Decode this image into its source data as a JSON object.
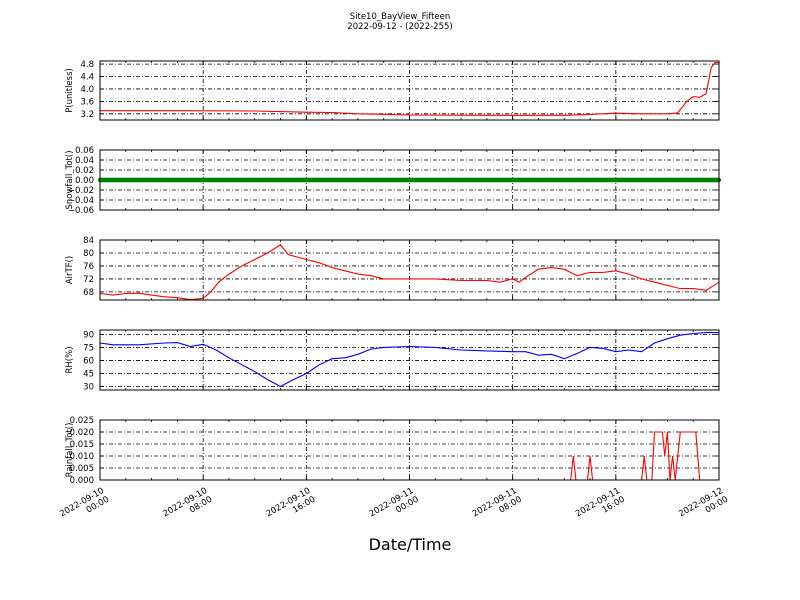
{
  "figure": {
    "title_line1": "Site10_BayView_Fifteen",
    "title_line2": "2022-09-12 - (2022-255)",
    "xlabel": "Date/Time"
  },
  "chart_data": {
    "type": "line",
    "x_axis": {
      "ticks": [
        {
          "line1": "2022-09-10",
          "line2": "00:00",
          "hours": 0
        },
        {
          "line1": "2022-09-10",
          "line2": "08:00",
          "hours": 8
        },
        {
          "line1": "2022-09-10",
          "line2": "16:00",
          "hours": 16
        },
        {
          "line1": "2022-09-11",
          "line2": "00:00",
          "hours": 24
        },
        {
          "line1": "2022-09-11",
          "line2": "08:00",
          "hours": 32
        },
        {
          "line1": "2022-09-11",
          "line2": "16:00",
          "hours": 40
        },
        {
          "line1": "2022-09-12",
          "line2": "00:00",
          "hours": 48
        }
      ],
      "range_hours": [
        0,
        48
      ]
    },
    "panels": [
      {
        "ylabel": "P(unitless)",
        "color": "#ff0000",
        "ylim": [
          3.0,
          4.9
        ],
        "yticks": [
          3.2,
          3.6,
          4.0,
          4.4,
          4.8
        ],
        "tick_labels": [
          "3.2",
          "3.6",
          "4.0",
          "4.4",
          "4.8"
        ],
        "grid": true,
        "series": {
          "name": "",
          "points": [
            [
              0,
              3.3
            ],
            [
              6,
              3.3
            ],
            [
              12,
              3.29
            ],
            [
              16,
              3.25
            ],
            [
              18,
              3.24
            ],
            [
              20,
              3.2
            ],
            [
              24,
              3.16
            ],
            [
              30,
              3.15
            ],
            [
              36,
              3.15
            ],
            [
              38,
              3.18
            ],
            [
              40,
              3.22
            ],
            [
              42,
              3.2
            ],
            [
              44,
              3.2
            ],
            [
              44.8,
              3.23
            ],
            [
              45.5,
              3.6
            ],
            [
              46,
              3.75
            ],
            [
              46.5,
              3.73
            ],
            [
              47,
              3.85
            ],
            [
              47.4,
              4.7
            ],
            [
              47.7,
              4.85
            ],
            [
              48,
              4.85
            ]
          ]
        }
      },
      {
        "ylabel": "Snowfall_Tot()",
        "color": "#008000",
        "ylim": [
          -0.06,
          0.06
        ],
        "yticks": [
          -0.06,
          -0.04,
          -0.02,
          0.0,
          0.02,
          0.04,
          0.06
        ],
        "tick_labels": [
          "−0.06",
          "−0.04",
          "−0.02",
          "0.00",
          "0.02",
          "0.04",
          "0.06"
        ],
        "grid": true,
        "series": {
          "name": "",
          "points": [
            [
              0,
              0
            ],
            [
              48,
              0
            ]
          ],
          "marker": "dot"
        }
      },
      {
        "ylabel": "AirTF()",
        "color": "#ff0000",
        "ylim": [
          65.5,
          84
        ],
        "yticks": [
          68,
          72,
          76,
          80,
          84
        ],
        "tick_labels": [
          "68",
          "72",
          "76",
          "80",
          "84"
        ],
        "grid": true,
        "series": {
          "name": "",
          "points": [
            [
              0,
              67.5
            ],
            [
              1,
              67
            ],
            [
              2,
              67.5
            ],
            [
              3,
              67.6
            ],
            [
              4,
              67
            ],
            [
              5,
              66.5
            ],
            [
              6,
              66.2
            ],
            [
              7,
              65.6
            ],
            [
              8,
              66
            ],
            [
              8.6,
              68
            ],
            [
              9.2,
              71
            ],
            [
              10,
              73.5
            ],
            [
              11,
              76
            ],
            [
              12,
              78
            ],
            [
              13,
              80
            ],
            [
              14,
              82.5
            ],
            [
              14.6,
              79.5
            ],
            [
              16,
              78
            ],
            [
              17,
              77
            ],
            [
              18,
              75.5
            ],
            [
              19,
              74.5
            ],
            [
              20,
              73.5
            ],
            [
              21,
              73
            ],
            [
              22,
              72
            ],
            [
              24,
              72
            ],
            [
              26,
              72
            ],
            [
              28,
              71.5
            ],
            [
              30,
              71.5
            ],
            [
              31,
              71
            ],
            [
              32,
              72
            ],
            [
              32.5,
              71
            ],
            [
              33,
              72.5
            ],
            [
              34,
              75
            ],
            [
              35,
              75.5
            ],
            [
              36,
              75
            ],
            [
              37,
              73
            ],
            [
              38,
              74
            ],
            [
              39,
              74
            ],
            [
              40,
              74.5
            ],
            [
              41,
              73.5
            ],
            [
              42,
              72
            ],
            [
              43,
              71
            ],
            [
              44,
              70
            ],
            [
              45,
              69
            ],
            [
              46,
              69
            ],
            [
              47,
              68.5
            ],
            [
              48,
              71
            ]
          ]
        }
      },
      {
        "ylabel": "RH(%)",
        "color": "#0000ff",
        "ylim": [
          26,
          95
        ],
        "yticks": [
          30,
          45,
          60,
          75,
          90
        ],
        "tick_labels": [
          "30",
          "45",
          "60",
          "75",
          "90"
        ],
        "grid": true,
        "series": {
          "name": "",
          "points": [
            [
              0,
              80
            ],
            [
              1,
              78
            ],
            [
              3,
              78
            ],
            [
              5,
              80
            ],
            [
              6,
              80.5
            ],
            [
              7,
              76
            ],
            [
              8,
              78.5
            ],
            [
              9,
              72
            ],
            [
              10,
              63
            ],
            [
              11,
              55
            ],
            [
              12,
              47
            ],
            [
              13,
              38
            ],
            [
              14,
              30
            ],
            [
              15,
              38
            ],
            [
              16,
              45
            ],
            [
              17,
              55
            ],
            [
              18,
              62
            ],
            [
              19,
              63
            ],
            [
              20,
              67
            ],
            [
              21,
              73
            ],
            [
              22,
              75
            ],
            [
              24,
              76
            ],
            [
              26,
              75
            ],
            [
              28,
              72
            ],
            [
              30,
              71
            ],
            [
              32,
              70
            ],
            [
              33,
              70
            ],
            [
              34,
              66
            ],
            [
              35,
              67
            ],
            [
              36,
              62
            ],
            [
              37,
              68
            ],
            [
              38,
              75
            ],
            [
              39,
              74
            ],
            [
              40,
              70
            ],
            [
              41,
              72
            ],
            [
              42,
              70
            ],
            [
              43,
              80
            ],
            [
              44,
              85
            ],
            [
              45,
              89
            ],
            [
              46,
              91
            ],
            [
              47,
              92
            ],
            [
              48,
              92
            ]
          ]
        }
      },
      {
        "ylabel": "Rainfall_Tot()",
        "color": "#ff0000",
        "ylim": [
          0.0,
          0.025
        ],
        "yticks": [
          0.0,
          0.005,
          0.01,
          0.015,
          0.02,
          0.025
        ],
        "tick_labels": [
          "0.000",
          "0.005",
          "0.010",
          "0.015",
          "0.020",
          "0.025"
        ],
        "grid": true,
        "series": {
          "name": "",
          "points": [
            [
              0,
              0
            ],
            [
              36.5,
              0
            ],
            [
              36.7,
              0.01
            ],
            [
              36.9,
              0
            ],
            [
              37.8,
              0
            ],
            [
              38.0,
              0.01
            ],
            [
              38.2,
              0
            ],
            [
              42.0,
              0
            ],
            [
              42.2,
              0.01
            ],
            [
              42.4,
              0
            ],
            [
              42.8,
              0
            ],
            [
              43.0,
              0.02
            ],
            [
              43.6,
              0.02
            ],
            [
              43.8,
              0.01
            ],
            [
              44.0,
              0.02
            ],
            [
              44.2,
              0
            ],
            [
              44.4,
              0.01
            ],
            [
              44.6,
              0
            ],
            [
              45.0,
              0.02
            ],
            [
              46.2,
              0.02
            ],
            [
              46.5,
              0
            ],
            [
              48,
              0
            ]
          ]
        }
      }
    ]
  }
}
